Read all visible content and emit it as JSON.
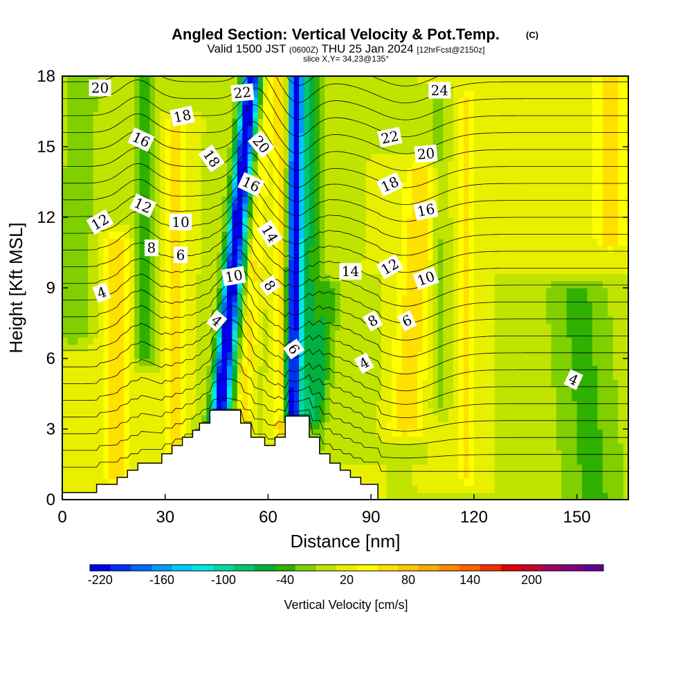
{
  "chart_data": {
    "type": "heatmap",
    "title": "Angled Section: Vertical Velocity & Pot.Temp.",
    "copyright_mark": "(C)",
    "subtitle_valid": "Valid 1500 JST",
    "subtitle_utc": "(0600Z)",
    "subtitle_date": "THU 25 Jan 2024",
    "subtitle_fcst": "[12hrFcst@2150z]",
    "slice_label": "slice X,Y= 34,23@135°",
    "xlabel": "Distance [nm]",
    "ylabel": "Height [Kft MSL]",
    "xlim": [
      0,
      165
    ],
    "ylim": [
      0,
      18
    ],
    "x_ticks": [
      "0",
      "30",
      "60",
      "90",
      "120",
      "150"
    ],
    "y_ticks": [
      "0",
      "3",
      "6",
      "9",
      "12",
      "15",
      "18"
    ],
    "colorbar": {
      "label": "Vertical Velocity [cm/s]",
      "tick_labels": [
        "-220",
        "-160",
        "-100",
        "-40",
        "20",
        "80",
        "140",
        "200"
      ],
      "min": -230,
      "step": 20,
      "colors": [
        "#0000ee",
        "#0033f0",
        "#0066f5",
        "#0099f8",
        "#00c8f8",
        "#00e8e0",
        "#00d8a0",
        "#00c870",
        "#00b040",
        "#30b000",
        "#80d000",
        "#c0e400",
        "#e8f000",
        "#ffff00",
        "#ffe000",
        "#ffc800",
        "#ffa800",
        "#ff8800",
        "#ff6000",
        "#f03000",
        "#e00000",
        "#c80030",
        "#a00060",
        "#800080",
        "#600090"
      ]
    },
    "terrain_steps": [
      [
        0,
        0.3
      ],
      [
        10,
        0.3
      ],
      [
        10,
        0.65
      ],
      [
        16,
        0.65
      ],
      [
        16,
        0.95
      ],
      [
        19,
        0.95
      ],
      [
        19,
        1.25
      ],
      [
        22,
        1.25
      ],
      [
        22,
        1.55
      ],
      [
        29,
        1.55
      ],
      [
        29,
        1.95
      ],
      [
        32,
        1.95
      ],
      [
        32,
        2.3
      ],
      [
        35,
        2.3
      ],
      [
        35,
        2.65
      ],
      [
        38,
        2.65
      ],
      [
        38,
        2.95
      ],
      [
        40,
        2.95
      ],
      [
        40,
        3.25
      ],
      [
        43,
        3.25
      ],
      [
        43,
        3.8
      ],
      [
        52,
        3.8
      ],
      [
        52,
        3.25
      ],
      [
        55,
        3.25
      ],
      [
        55,
        2.65
      ],
      [
        59,
        2.65
      ],
      [
        59,
        2.3
      ],
      [
        62,
        2.3
      ],
      [
        62,
        2.65
      ],
      [
        65,
        2.65
      ],
      [
        65,
        3.55
      ],
      [
        72,
        3.55
      ],
      [
        72,
        2.65
      ],
      [
        75,
        2.65
      ],
      [
        75,
        1.95
      ],
      [
        78,
        1.95
      ],
      [
        78,
        1.55
      ],
      [
        81,
        1.55
      ],
      [
        81,
        1.25
      ],
      [
        84,
        1.25
      ],
      [
        84,
        0.95
      ],
      [
        87,
        0.95
      ],
      [
        87,
        0.65
      ],
      [
        92,
        0.65
      ],
      [
        92,
        0
      ]
    ],
    "velocity_background_cm_s": 10,
    "velocity_features": [
      {
        "x": 45,
        "x_top": 55,
        "width_nm": 2.2,
        "y_range": [
          2.6,
          18
        ],
        "value": -200
      },
      {
        "x": 47,
        "x_top": 57,
        "width_nm": 5,
        "y_range": [
          2.6,
          18
        ],
        "value": -80
      },
      {
        "x": 52,
        "x_top": 60,
        "width_nm": 2.5,
        "y_range": [
          3,
          18
        ],
        "value": 80
      },
      {
        "x": 67,
        "x_top": 68,
        "width_nm": 2.2,
        "y_range": [
          3.5,
          18
        ],
        "value": -200
      },
      {
        "x": 70,
        "x_top": 71,
        "width_nm": 5.5,
        "y_range": [
          3.5,
          18
        ],
        "value": -70
      },
      {
        "x": 64,
        "x_top": 64,
        "width_nm": 2.5,
        "y_range": [
          3,
          18
        ],
        "value": 80
      },
      {
        "x": 73,
        "x_top": 78,
        "width_nm": 3,
        "y_range": [
          2,
          9
        ],
        "value": -40
      },
      {
        "x": 24,
        "x_top": 24,
        "width_nm": 3,
        "y_range": [
          6,
          18
        ],
        "value": -50
      },
      {
        "x": 16,
        "x_top": 16,
        "width_nm": 4,
        "y_range": [
          1,
          11
        ],
        "value": 55
      },
      {
        "x": 33,
        "x_top": 33,
        "width_nm": 3,
        "y_range": [
          2,
          16
        ],
        "value": 50
      },
      {
        "x": 3,
        "x_top": 6,
        "width_nm": 5,
        "y_range": [
          7,
          18
        ],
        "value": -40
      },
      {
        "x": 155,
        "x_top": 150,
        "width_nm": 10,
        "y_range": [
          0,
          9
        ],
        "value": -45
      },
      {
        "x": 100,
        "x_top": 105,
        "width_nm": 5,
        "y_range": [
          3,
          14
        ],
        "value": 55
      },
      {
        "x": 118,
        "x_top": 118,
        "width_nm": 3,
        "y_range": [
          1,
          17
        ],
        "value": 45
      },
      {
        "x": 110,
        "x_top": 110,
        "width_nm": 2.5,
        "y_range": [
          4,
          17
        ],
        "value": -30
      },
      {
        "x": 85,
        "x_top": 85,
        "width_nm": 6,
        "y_range": [
          2,
          9
        ],
        "value": -15
      },
      {
        "x": 160,
        "x_top": 160,
        "width_nm": 5,
        "y_range": [
          11,
          18
        ],
        "value": 50
      }
    ],
    "contour_labels": [
      {
        "text": "20",
        "x": 11,
        "y": 17.5,
        "angle": 0
      },
      {
        "text": "22",
        "x": 52.5,
        "y": 17.3,
        "angle": -5
      },
      {
        "text": "24",
        "x": 110,
        "y": 17.4,
        "angle": 0
      },
      {
        "text": "18",
        "x": 35,
        "y": 16.3,
        "angle": -12
      },
      {
        "text": "16",
        "x": 23,
        "y": 15.3,
        "angle": 25
      },
      {
        "text": "20",
        "x": 58,
        "y": 15.1,
        "angle": 50
      },
      {
        "text": "22",
        "x": 95.5,
        "y": 15.4,
        "angle": -12
      },
      {
        "text": "20",
        "x": 106,
        "y": 14.7,
        "angle": -5
      },
      {
        "text": "18",
        "x": 43.5,
        "y": 14.5,
        "angle": 55
      },
      {
        "text": "16",
        "x": 55,
        "y": 13.4,
        "angle": 25
      },
      {
        "text": "18",
        "x": 95.5,
        "y": 13.4,
        "angle": -25
      },
      {
        "text": "16",
        "x": 106,
        "y": 12.3,
        "angle": -12
      },
      {
        "text": "12",
        "x": 11,
        "y": 11.8,
        "angle": -30
      },
      {
        "text": "12",
        "x": 23.5,
        "y": 12.5,
        "angle": 25
      },
      {
        "text": "10",
        "x": 34.5,
        "y": 11.8,
        "angle": 0
      },
      {
        "text": "14",
        "x": 60.5,
        "y": 11.3,
        "angle": 58
      },
      {
        "text": "8",
        "x": 26,
        "y": 10.7,
        "angle": 0
      },
      {
        "text": "6",
        "x": 34.5,
        "y": 10.4,
        "angle": 0
      },
      {
        "text": "14",
        "x": 84,
        "y": 9.7,
        "angle": 0
      },
      {
        "text": "12",
        "x": 95.5,
        "y": 9.9,
        "angle": -30
      },
      {
        "text": "10",
        "x": 50,
        "y": 9.5,
        "angle": -10
      },
      {
        "text": "10",
        "x": 106,
        "y": 9.4,
        "angle": -20
      },
      {
        "text": "4",
        "x": 11.5,
        "y": 8.8,
        "angle": -20
      },
      {
        "text": "8",
        "x": 60.5,
        "y": 9.1,
        "angle": 55
      },
      {
        "text": "8",
        "x": 90.5,
        "y": 7.6,
        "angle": -30
      },
      {
        "text": "6",
        "x": 100.5,
        "y": 7.6,
        "angle": -25
      },
      {
        "text": "4",
        "x": 45,
        "y": 7.6,
        "angle": 40
      },
      {
        "text": "6",
        "x": 67.5,
        "y": 6.4,
        "angle": 55
      },
      {
        "text": "4",
        "x": 88,
        "y": 5.8,
        "angle": -30
      },
      {
        "text": "4",
        "x": 149,
        "y": 5.1,
        "angle": 25
      }
    ]
  }
}
